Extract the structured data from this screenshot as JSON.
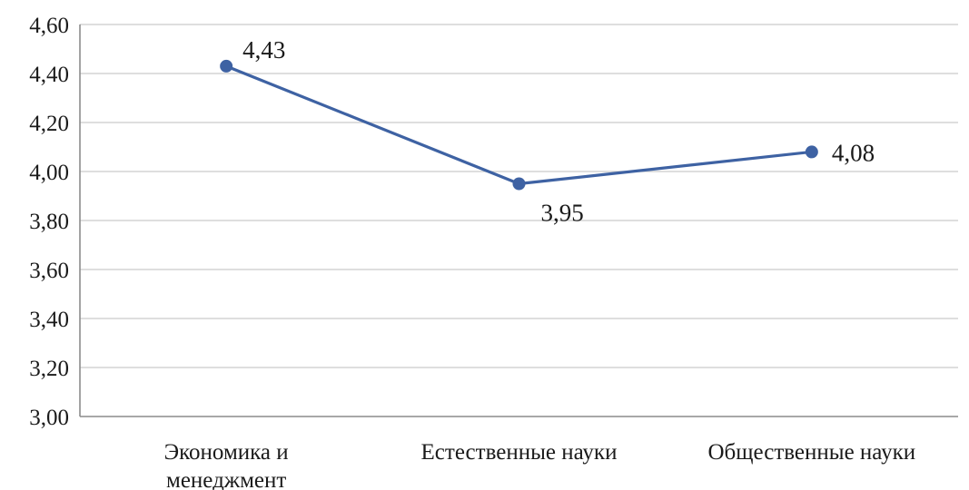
{
  "chart_data": {
    "type": "line",
    "categories": [
      [
        "Экономика и",
        "менеджмент"
      ],
      [
        "Естественные науки"
      ],
      [
        "Общественные науки"
      ]
    ],
    "series": [
      {
        "values": [
          4.43,
          3.95,
          4.08
        ],
        "labels": [
          "4,43",
          "3,95",
          "4,08"
        ],
        "color": "#3e62a3"
      }
    ],
    "y_ticks": [
      "3,00",
      "3,20",
      "3,40",
      "3,60",
      "3,80",
      "4,00",
      "4,20",
      "4,40",
      "4,60"
    ],
    "ylim": [
      3.0,
      4.6
    ],
    "y_step": 0.2,
    "grid": true,
    "legend": "none",
    "gridline_color": "#d4d4d4",
    "axis_color": "#8c8c8c"
  }
}
